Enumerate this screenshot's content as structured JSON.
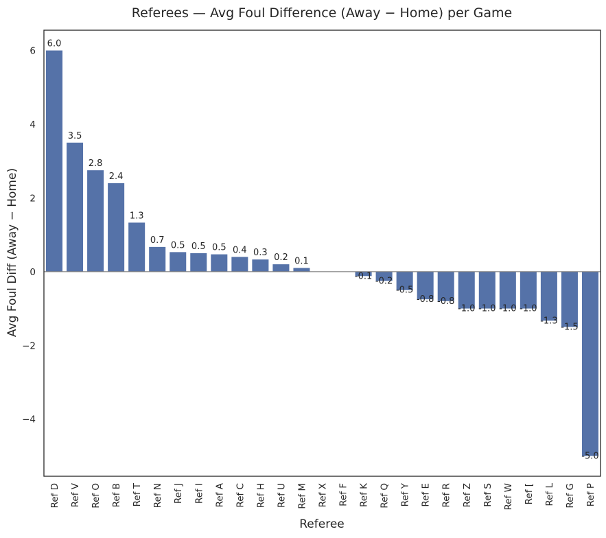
{
  "chart_data": {
    "type": "bar",
    "title": "Referees — Avg Foul Difference (Away − Home) per Game",
    "xlabel": "Referee",
    "ylabel": "Avg Foul Diff (Away − Home)",
    "ylim": [
      -5.55,
      6.55
    ],
    "yticks": [
      -4,
      -2,
      0,
      2,
      4,
      6
    ],
    "ytick_labels": [
      "−4",
      "−2",
      "0",
      "2",
      "4",
      "6"
    ],
    "grid": false,
    "zero_line": true,
    "bar_color": "#5572a8",
    "categories": [
      "Ref D",
      "Ref V",
      "Ref O",
      "Ref B",
      "Ref T",
      "Ref N",
      "Ref J",
      "Ref I",
      "Ref A",
      "Ref C",
      "Ref H",
      "Ref U",
      "Ref M",
      "Ref X",
      "Ref F",
      "Ref K",
      "Ref Q",
      "Ref Y",
      "Ref E",
      "Ref R",
      "Ref Z",
      "Ref S",
      "Ref W",
      "Ref [",
      "Ref L",
      "Ref G",
      "Ref P"
    ],
    "values": [
      6.0,
      3.5,
      2.75,
      2.4,
      1.33,
      0.67,
      0.53,
      0.5,
      0.47,
      0.4,
      0.33,
      0.2,
      0.1,
      0.0,
      0.0,
      -0.12,
      -0.25,
      -0.5,
      -0.75,
      -0.8,
      -1.0,
      -1.0,
      -1.0,
      -1.0,
      -1.33,
      -1.5,
      -5.0
    ],
    "data_labels": [
      "6.0",
      "3.5",
      "2.8",
      "2.4",
      "1.3",
      "0.7",
      "0.5",
      "0.5",
      "0.5",
      "0.4",
      "0.3",
      "0.2",
      "0.1",
      "",
      "",
      "-0.1",
      "-0.2",
      "-0.5",
      "-0.8",
      "-0.8",
      "-1.0",
      "-1.0",
      "-1.0",
      "-1.0",
      "-1.3",
      "-1.5",
      "-5.0"
    ]
  }
}
